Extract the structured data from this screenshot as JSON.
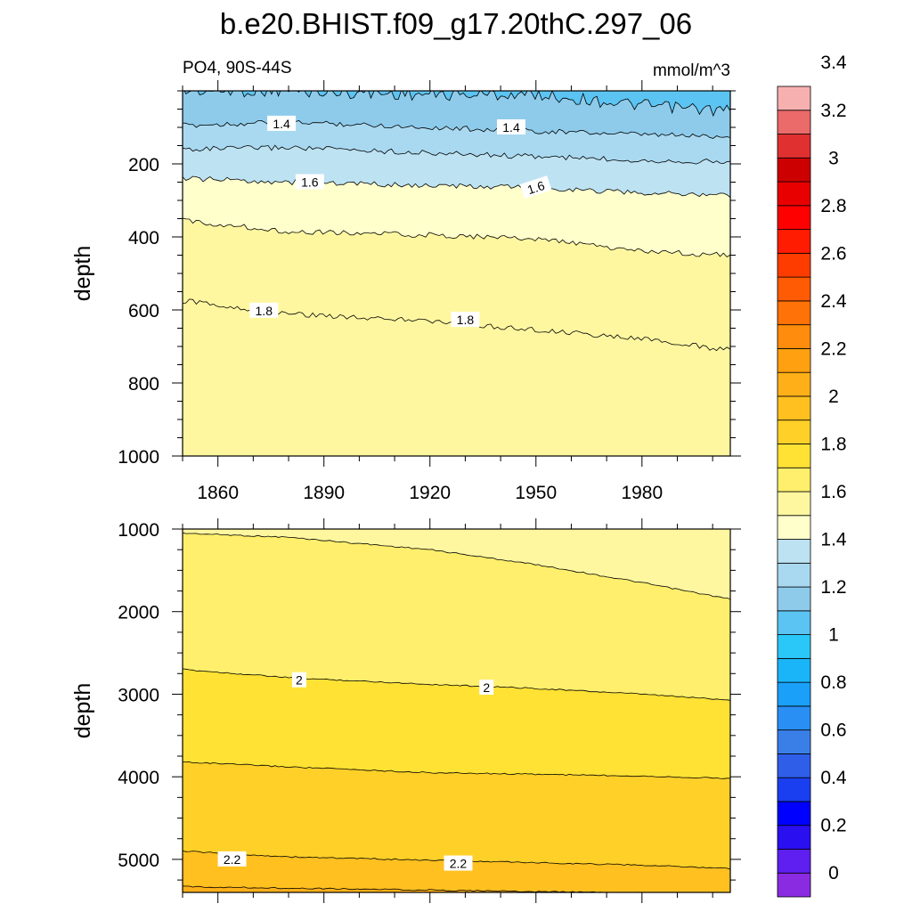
{
  "title": "b.e20.BHIST.f09_g17.20thC.297_06",
  "subtitle_left": "PO4, 90S-44S",
  "subtitle_right": "mmol/m^3",
  "colors": {
    "line": "#000000",
    "levels": [
      "#8a2be2",
      "#5e1ff0",
      "#2a0ff0",
      "#0000ff",
      "#1a3ff0",
      "#2f5fe8",
      "#3a7fe8",
      "#2a8ff5",
      "#1aa0f8",
      "#1ab5f8",
      "#2ac8f8",
      "#5bc4f2",
      "#8ecbeb",
      "#a9d9f0",
      "#bde2f2",
      "#ffffcc",
      "#fff7a0",
      "#ffef6c",
      "#ffe234",
      "#ffd028",
      "#ffc020",
      "#ffb018",
      "#ffa010",
      "#ff8c0c",
      "#ff7208",
      "#ff5a04",
      "#ff3c00",
      "#ff1c00",
      "#ff0000",
      "#e80000",
      "#cc0000",
      "#e03030",
      "#eb6a6a",
      "#f7b0b0"
    ]
  },
  "chart_data": [
    {
      "type": "contour",
      "panel": "upper",
      "ylabel": "depth",
      "xlim": [
        1850,
        2005
      ],
      "ylim": [
        1000,
        0
      ],
      "y_reversed": true,
      "xticks": [
        1860,
        1890,
        1920,
        1950,
        1980
      ],
      "xtick_labels": [
        "1860",
        "1890",
        "1920",
        "1950",
        "1980"
      ],
      "yticks": [
        200,
        400,
        600,
        800,
        1000
      ],
      "ytick_labels": [
        "200",
        "400",
        "600",
        "800",
        "1000"
      ],
      "contours": [
        {
          "level": 1.2,
          "x": [
            1850,
            1880,
            1900,
            1920,
            1950,
            1980,
            2005
          ],
          "y": [
            0,
            0,
            5,
            10,
            10,
            40,
            55
          ]
        },
        {
          "level": 1.4,
          "x": [
            1850,
            1880,
            1920,
            1950,
            1980,
            2005
          ],
          "y": [
            95,
            85,
            100,
            110,
            120,
            125
          ]
        },
        {
          "level": 1.5,
          "x": [
            1850,
            1880,
            1920,
            1950,
            1980,
            2005
          ],
          "y": [
            160,
            155,
            170,
            180,
            190,
            195
          ]
        },
        {
          "level": 1.6,
          "x": [
            1850,
            1880,
            1920,
            1950,
            1980,
            2005
          ],
          "y": [
            240,
            250,
            260,
            265,
            280,
            285
          ]
        },
        {
          "level": 1.7,
          "x": [
            1850,
            1880,
            1920,
            1950,
            1980,
            2005
          ],
          "y": [
            355,
            385,
            395,
            405,
            440,
            450
          ]
        },
        {
          "level": 1.8,
          "x": [
            1850,
            1880,
            1920,
            1950,
            1980,
            2005
          ],
          "y": [
            575,
            610,
            630,
            655,
            680,
            710
          ]
        }
      ],
      "fills": [
        {
          "color": "#5bc4f2",
          "below_level": 1.2
        },
        {
          "color": "#8ecbeb",
          "below_level": 1.4
        },
        {
          "color": "#a9d9f0",
          "below_level": 1.5
        },
        {
          "color": "#bde2f2",
          "below_level": 1.6
        },
        {
          "color": "#ffffcc",
          "below_level": 1.7
        },
        {
          "color": "#fff7a0",
          "below_level": 1.8
        }
      ],
      "labels": [
        {
          "text": "1.4",
          "x": 1878,
          "y": 90,
          "angle": 0
        },
        {
          "text": "1.4",
          "x": 1943,
          "y": 100,
          "angle": 0
        },
        {
          "text": "1.6",
          "x": 1886,
          "y": 250,
          "angle": 0
        },
        {
          "text": "1.6",
          "x": 1950,
          "y": 265,
          "angle": -18
        },
        {
          "text": "1.8",
          "x": 1873,
          "y": 602,
          "angle": 0
        },
        {
          "text": "1.8",
          "x": 1930,
          "y": 627,
          "angle": 0
        }
      ]
    },
    {
      "type": "contour",
      "panel": "lower",
      "ylabel": "depth",
      "xlim": [
        1850,
        2005
      ],
      "ylim": [
        5400,
        1000
      ],
      "y_reversed": true,
      "xticks": [
        1860,
        1890,
        1920,
        1950,
        1980
      ],
      "yticks": [
        1000,
        2000,
        3000,
        4000,
        5000
      ],
      "ytick_labels": [
        "1000",
        "2000",
        "3000",
        "4000",
        "5000"
      ],
      "contours": [
        {
          "level": 1.9,
          "x": [
            1850,
            1880,
            1920,
            1950,
            1980,
            2005
          ],
          "y": [
            1050,
            1100,
            1250,
            1430,
            1650,
            1850
          ]
        },
        {
          "level": 2.0,
          "x": [
            1850,
            1880,
            1920,
            1950,
            1980,
            2005
          ],
          "y": [
            2700,
            2800,
            2880,
            2930,
            3000,
            3070
          ]
        },
        {
          "level": 2.1,
          "x": [
            1850,
            1880,
            1920,
            1950,
            1980,
            2005
          ],
          "y": [
            3820,
            3880,
            3950,
            3970,
            3990,
            4020
          ]
        },
        {
          "level": 2.2,
          "x": [
            1850,
            1880,
            1920,
            1950,
            1980,
            2005
          ],
          "y": [
            4900,
            4970,
            5010,
            5040,
            5070,
            5110
          ]
        },
        {
          "level": 2.3,
          "x": [
            1850,
            1900,
            1950,
            2005
          ],
          "y": [
            5330,
            5360,
            5390,
            5420
          ]
        }
      ],
      "fills": [
        {
          "color": "#fff7a0",
          "below_level": 1.9
        },
        {
          "color": "#ffef6c",
          "below_level": 2.0
        },
        {
          "color": "#ffe234",
          "below_level": 2.1
        },
        {
          "color": "#ffd028",
          "below_level": 2.2
        },
        {
          "color": "#ffc020",
          "below_level": 2.3
        },
        {
          "color": "#ffb018",
          "below_level": 9
        }
      ],
      "labels": [
        {
          "text": "2",
          "x": 1883,
          "y": 2830,
          "angle": 0
        },
        {
          "text": "2",
          "x": 1936,
          "y": 2920,
          "angle": 0
        },
        {
          "text": "2.2",
          "x": 1864,
          "y": 5000,
          "angle": 0
        },
        {
          "text": "2.2",
          "x": 1928,
          "y": 5050,
          "angle": 0
        }
      ]
    }
  ],
  "colorbar": {
    "min": -0.1,
    "step": 0.1,
    "labels": [
      "0",
      "0.2",
      "0.4",
      "0.6",
      "0.8",
      "1",
      "1.2",
      "1.4",
      "1.6",
      "1.8",
      "2",
      "2.2",
      "2.4",
      "2.6",
      "2.8",
      "3",
      "3.2",
      "3.4"
    ]
  }
}
